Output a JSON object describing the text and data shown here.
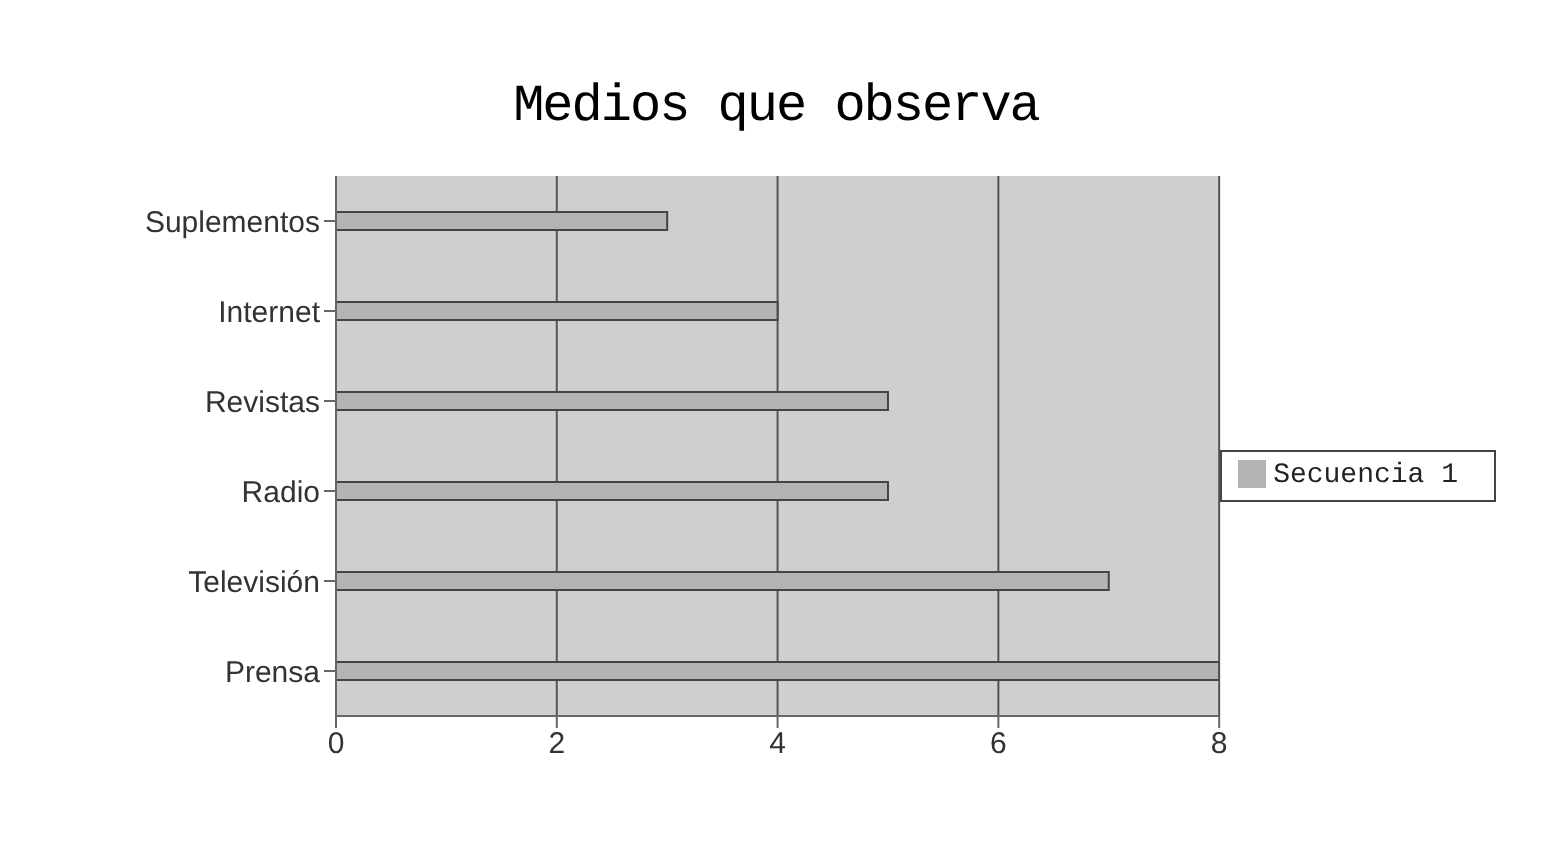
{
  "chart_data": {
    "type": "bar",
    "orientation": "horizontal",
    "title": "Medios que observa",
    "categories": [
      "Suplementos",
      "Internet",
      "Revistas",
      "Radio",
      "Televisión",
      "Prensa"
    ],
    "series": [
      {
        "name": "Secuencia 1",
        "color": "#b4b4b4",
        "values": [
          3,
          4,
          5,
          5,
          7,
          8
        ]
      }
    ],
    "xlim": [
      0,
      8
    ],
    "xticks": [
      0,
      2,
      4,
      6,
      8
    ],
    "grid": "x",
    "legend": "right"
  }
}
